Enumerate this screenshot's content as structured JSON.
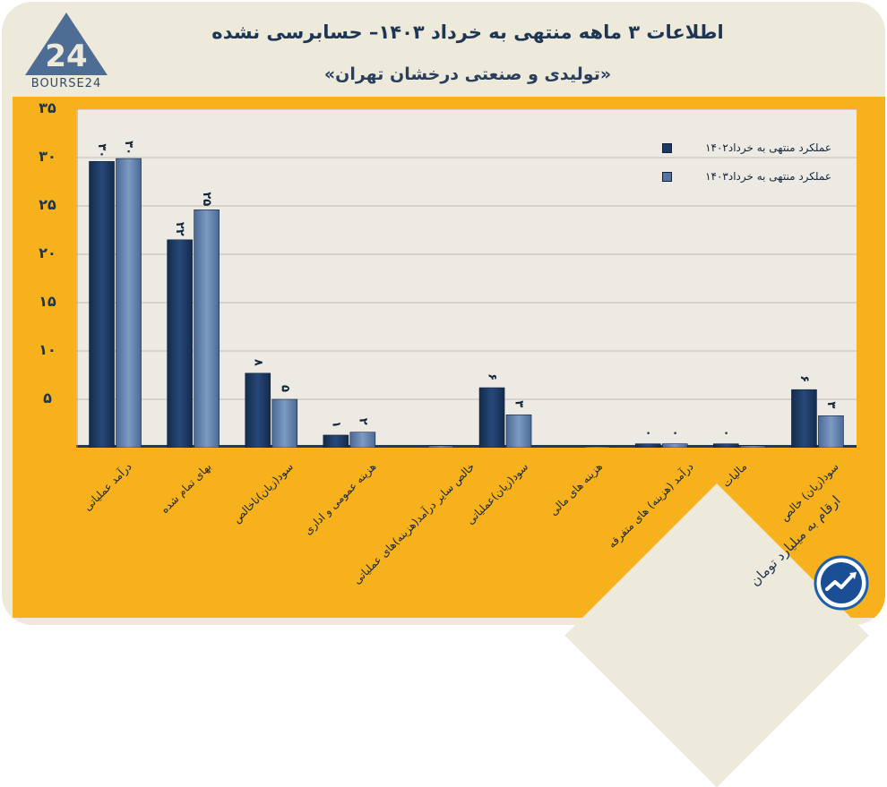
{
  "header": {
    "title": "اطلاعات ۳ ماهه منتهی به خرداد ۱۴۰۳– حسابرسی نشده",
    "subtitle": "«تولیدی و صنعتی درخشان تهران»",
    "logo_text": "BOURSE24",
    "logo_mark": "24"
  },
  "footer": {
    "units_note": "ارقام به میلیارد تومان",
    "brand_icon": "trend-arrow-icon"
  },
  "colors": {
    "series_1": "#1c3a63",
    "series_2": "#54749f",
    "panel": "#f7b11c",
    "plot_bg": "#edeae4",
    "text": "#1d3452"
  },
  "chart_data": {
    "type": "bar",
    "categories": [
      "درآمد عملیاتی",
      "بهای تمام شده",
      "سود(زیان)ناخالص",
      "هزینه عمومی و اداری",
      "خالص سایر درآمد(هزینه)های عملیاتی",
      "سود(زیان)عملیاتی",
      "هزینه های مالی",
      "درآمد (هزینه) های متفرقه",
      "مالیات",
      "سود(زیان) خالص"
    ],
    "series": [
      {
        "name": "عملکرد منتهی به خرداد۱۴۰۲",
        "values": [
          29.6,
          21.5,
          7.7,
          1.3,
          0,
          6.2,
          0,
          0.4,
          0.4,
          6.0
        ],
        "labels": [
          "۳۰",
          "۲۲",
          "۸",
          "۱",
          "",
          "۶",
          "",
          "۰",
          "۰",
          "۶"
        ]
      },
      {
        "name": "عملکرد منتهی به خرداد۱۴۰۳",
        "values": [
          29.9,
          24.6,
          5.0,
          1.6,
          0.2,
          3.4,
          0.1,
          0.4,
          0.2,
          3.3
        ],
        "labels": [
          "۳۰",
          "۲۵",
          "۵",
          "۲",
          "",
          "۳",
          "",
          "۰",
          "",
          "۳"
        ]
      }
    ],
    "y_ticks": [
      "۳۵",
      "۳۰",
      "۲۵",
      "۲۰",
      "۱۵",
      "۱۰",
      "۵"
    ],
    "ylim": [
      0,
      35
    ],
    "grid": true,
    "legend_position": "top-right"
  }
}
